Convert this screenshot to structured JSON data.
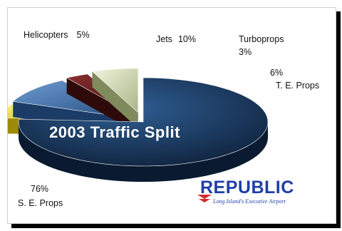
{
  "chart_data": {
    "type": "pie",
    "title": "2003 Traffic Split",
    "slices": [
      {
        "name": "S. E. Props",
        "value": 76,
        "label": "76%",
        "color": "#1c3d66"
      },
      {
        "name": "Helicopters",
        "value": 5,
        "label": "5%",
        "color": "#e2cf22"
      },
      {
        "name": "Jets",
        "value": 10,
        "label": "10%",
        "color": "#3a6aa3"
      },
      {
        "name": "Turboprops",
        "value": 3,
        "label": "3%",
        "color": "#6b1e1e"
      },
      {
        "name": "T. E. Props",
        "value": 6,
        "label": "6%",
        "color": "#cfd8b0"
      }
    ]
  },
  "logo": {
    "name": "REPUBLIC",
    "tagline": "Long Island's Executive Airport",
    "color": "#1f3fa8",
    "accent": "#d42a2a"
  }
}
